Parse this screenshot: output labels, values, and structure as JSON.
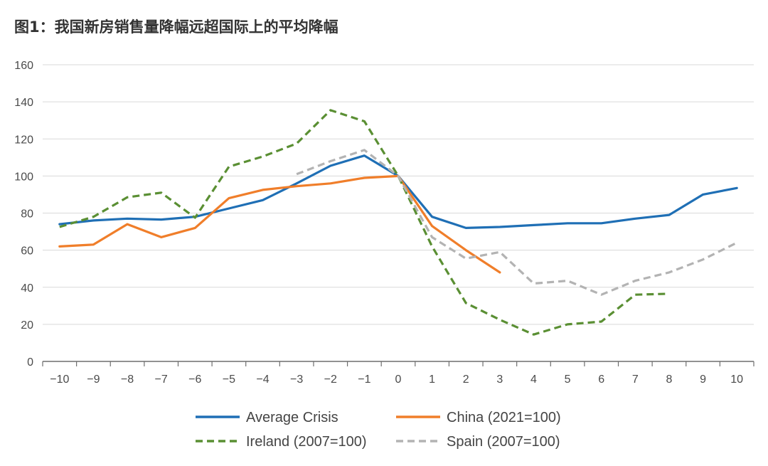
{
  "title": "图1：我国新房销售量降幅远超国际上的平均降幅",
  "chart_data": {
    "type": "line",
    "title": "图1：我国新房销售量降幅远超国际上的平均降幅",
    "xlabel": "",
    "ylabel": "",
    "x": [
      -10,
      -9,
      -8,
      -7,
      -6,
      -5,
      -4,
      -3,
      -2,
      -1,
      0,
      1,
      2,
      3,
      4,
      5,
      6,
      7,
      8,
      9,
      10
    ],
    "x_tick_labels": [
      "−10",
      "−9",
      "−8",
      "−7",
      "−6",
      "−5",
      "−4",
      "−3",
      "−2",
      "−1",
      "0",
      "1",
      "2",
      "3",
      "4",
      "5",
      "6",
      "7",
      "8",
      "9",
      "10"
    ],
    "xlim": [
      -10.5,
      10.5
    ],
    "ylim": [
      0,
      160
    ],
    "y_ticks": [
      0,
      20,
      40,
      60,
      80,
      100,
      120,
      140,
      160
    ],
    "y_tick_labels": [
      "0",
      "20",
      "40",
      "60",
      "80",
      "100",
      "120",
      "140",
      "160"
    ],
    "grid": "horizontal",
    "legend_position": "bottom",
    "series": [
      {
        "name": "Average Crisis",
        "color": "#1f6fb5",
        "style": "solid",
        "x": [
          -10,
          -9,
          -8,
          -7,
          -6,
          -5,
          -4,
          -3,
          -2,
          -1,
          0,
          1,
          2,
          3,
          4,
          5,
          6,
          7,
          8,
          9,
          10
        ],
        "values": [
          74,
          76,
          77,
          76.5,
          78,
          82.5,
          87,
          96,
          105.5,
          111,
          100,
          78,
          72,
          72.5,
          73.5,
          74.5,
          74.5,
          77,
          79,
          90,
          93.5
        ]
      },
      {
        "name": "China (2021=100)",
        "color": "#f07e2a",
        "style": "solid",
        "x": [
          -10,
          -9,
          -8,
          -7,
          -6,
          -5,
          -4,
          -3,
          -2,
          -1,
          0,
          1,
          2,
          3
        ],
        "values": [
          62,
          63,
          74,
          67,
          72,
          88,
          92.5,
          94.5,
          96,
          99,
          100,
          73,
          60,
          48
        ]
      },
      {
        "name": "Ireland (2007=100)",
        "color": "#5a8f33",
        "style": "dashed",
        "x": [
          -10,
          -9,
          -8,
          -7,
          -6,
          -5,
          -4,
          -3,
          -2,
          -1,
          0,
          1,
          2,
          3,
          4,
          5,
          6,
          7,
          8
        ],
        "values": [
          72.5,
          78,
          88.5,
          91,
          77.5,
          105,
          110.5,
          117.5,
          135.5,
          129.5,
          100,
          62,
          31.5,
          22.5,
          14.5,
          20,
          21.5,
          36,
          36.5
        ]
      },
      {
        "name": "Spain (2007=100)",
        "color": "#b3b3b3",
        "style": "dashed",
        "x": [
          -3,
          -2,
          -1,
          0,
          1,
          2,
          3,
          4,
          5,
          6,
          7,
          8,
          9,
          10
        ],
        "values": [
          101,
          108,
          114,
          100,
          67,
          55.5,
          59,
          42,
          43.5,
          36,
          43.5,
          48,
          55,
          64
        ]
      }
    ]
  }
}
